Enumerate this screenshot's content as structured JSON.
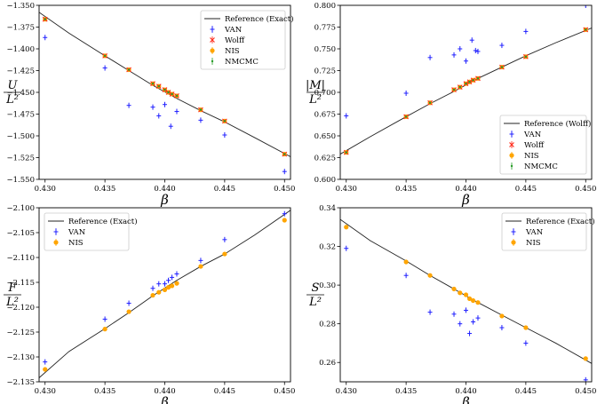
{
  "figure": {
    "colors": {
      "reference": "#222222",
      "VAN": "#1f1fff",
      "Wolff": "#ff2a1a",
      "NIS": "#ffa500",
      "NMCMC": "#2a9d2a"
    }
  },
  "chart_data": [
    {
      "id": "energy",
      "type": "scatter",
      "ylabel_num": "U",
      "ylabel_den": "L²",
      "xlabel": "β",
      "xlim": [
        0.4295,
        0.4505
      ],
      "ylim": [
        -1.55,
        -1.35
      ],
      "xticks": [
        0.43,
        0.435,
        0.44,
        0.445,
        0.45
      ],
      "xtick_labels": [
        "0.430",
        "0.435",
        "0.440",
        "0.445",
        "0.450"
      ],
      "yticks": [
        -1.55,
        -1.525,
        -1.5,
        -1.475,
        -1.45,
        -1.425,
        -1.4,
        -1.375,
        -1.35
      ],
      "ytick_labels": [
        "−1.550",
        "−1.525",
        "−1.500",
        "−1.475",
        "−1.450",
        "−1.425",
        "−1.400",
        "−1.375",
        "−1.350"
      ],
      "legend": "top-right",
      "reference": {
        "name": "Reference (Exact)",
        "x": [
          0.4295,
          0.432,
          0.435,
          0.437,
          0.439,
          0.441,
          0.443,
          0.445,
          0.4475,
          0.4505
        ],
        "y": [
          -1.358,
          -1.382,
          -1.408,
          -1.425,
          -1.442,
          -1.457,
          -1.471,
          -1.484,
          -1.502,
          -1.524
        ]
      },
      "series": [
        {
          "name": "VAN",
          "marker": "plus",
          "x": [
            0.43,
            0.435,
            0.437,
            0.439,
            0.4395,
            0.44,
            0.4405,
            0.441,
            0.443,
            0.445,
            0.45
          ],
          "y": [
            -1.387,
            -1.422,
            -1.465,
            -1.467,
            -1.477,
            -1.464,
            -1.489,
            -1.472,
            -1.482,
            -1.499,
            -1.541
          ]
        },
        {
          "name": "Wolff",
          "marker": "x",
          "x": [
            0.43,
            0.435,
            0.437,
            0.439,
            0.4395,
            0.44,
            0.4403,
            0.4406,
            0.441,
            0.443,
            0.445,
            0.45
          ],
          "y": [
            -1.366,
            -1.408,
            -1.424,
            -1.44,
            -1.443,
            -1.447,
            -1.45,
            -1.452,
            -1.454,
            -1.47,
            -1.483,
            -1.521
          ]
        },
        {
          "name": "NIS",
          "marker": "dot",
          "x": [
            0.43,
            0.435,
            0.437,
            0.439,
            0.4395,
            0.44,
            0.4403,
            0.4406,
            0.441,
            0.443,
            0.445,
            0.45
          ],
          "y": [
            -1.366,
            -1.408,
            -1.424,
            -1.44,
            -1.443,
            -1.447,
            -1.45,
            -1.452,
            -1.454,
            -1.47,
            -1.483,
            -1.521
          ]
        },
        {
          "name": "NMCMC",
          "marker": "dot-small",
          "x": [
            0.43,
            0.435,
            0.437,
            0.439,
            0.4395,
            0.44,
            0.4403,
            0.4406,
            0.441,
            0.443,
            0.445,
            0.45
          ],
          "y": [
            -1.366,
            -1.408,
            -1.424,
            -1.44,
            -1.443,
            -1.447,
            -1.45,
            -1.452,
            -1.454,
            -1.47,
            -1.483,
            -1.521
          ]
        }
      ]
    },
    {
      "id": "magnetization",
      "type": "scatter",
      "ylabel_num": "|M|",
      "ylabel_den": "L²",
      "xlabel": "β",
      "xlim": [
        0.4295,
        0.4505
      ],
      "ylim": [
        0.6,
        0.8
      ],
      "xticks": [
        0.43,
        0.435,
        0.44,
        0.445,
        0.45
      ],
      "xtick_labels": [
        "0.430",
        "0.435",
        "0.440",
        "0.445",
        "0.450"
      ],
      "yticks": [
        0.6,
        0.625,
        0.65,
        0.675,
        0.7,
        0.725,
        0.75,
        0.775,
        0.8
      ],
      "ytick_labels": [
        "0.600",
        "0.625",
        "0.650",
        "0.675",
        "0.700",
        "0.725",
        "0.750",
        "0.775",
        "0.800"
      ],
      "legend": "bottom-right",
      "reference": {
        "name": "Reference (Wolff)",
        "x": [
          0.4295,
          0.432,
          0.435,
          0.437,
          0.439,
          0.441,
          0.443,
          0.445,
          0.4475,
          0.4505
        ],
        "y": [
          0.629,
          0.649,
          0.672,
          0.687,
          0.701,
          0.716,
          0.729,
          0.742,
          0.757,
          0.774
        ]
      },
      "series": [
        {
          "name": "VAN",
          "marker": "plus",
          "x": [
            0.43,
            0.435,
            0.437,
            0.439,
            0.4395,
            0.44,
            0.4405,
            0.4408,
            0.441,
            0.443,
            0.445,
            0.45
          ],
          "y": [
            0.673,
            0.699,
            0.74,
            0.743,
            0.75,
            0.736,
            0.76,
            0.748,
            0.747,
            0.754,
            0.77,
            0.8
          ]
        },
        {
          "name": "Wolff",
          "marker": "x",
          "x": [
            0.43,
            0.435,
            0.437,
            0.439,
            0.4395,
            0.44,
            0.4403,
            0.4406,
            0.441,
            0.443,
            0.445,
            0.45
          ],
          "y": [
            0.631,
            0.672,
            0.688,
            0.703,
            0.706,
            0.71,
            0.712,
            0.714,
            0.716,
            0.729,
            0.741,
            0.772
          ]
        },
        {
          "name": "NIS",
          "marker": "dot",
          "x": [
            0.43,
            0.435,
            0.437,
            0.439,
            0.4395,
            0.44,
            0.4403,
            0.4406,
            0.441,
            0.443,
            0.445,
            0.45
          ],
          "y": [
            0.631,
            0.672,
            0.688,
            0.703,
            0.706,
            0.71,
            0.712,
            0.714,
            0.716,
            0.729,
            0.741,
            0.772
          ]
        },
        {
          "name": "NMCMC",
          "marker": "dot-small",
          "x": [
            0.43,
            0.435,
            0.437,
            0.439,
            0.4395,
            0.44,
            0.4403,
            0.4406,
            0.441,
            0.443,
            0.445,
            0.45
          ],
          "y": [
            0.631,
            0.672,
            0.688,
            0.703,
            0.706,
            0.71,
            0.712,
            0.714,
            0.716,
            0.729,
            0.741,
            0.772
          ]
        }
      ]
    },
    {
      "id": "free-energy",
      "type": "scatter",
      "ylabel_num": "F",
      "ylabel_den": "L²",
      "xlabel": "β",
      "xlim": [
        0.4295,
        0.4505
      ],
      "ylim": [
        -2.135,
        -2.1
      ],
      "xticks": [
        0.43,
        0.435,
        0.44,
        0.445,
        0.45
      ],
      "xtick_labels": [
        "0.430",
        "0.435",
        "0.440",
        "0.445",
        "0.450"
      ],
      "yticks": [
        -2.135,
        -2.13,
        -2.125,
        -2.12,
        -2.115,
        -2.11,
        -2.105,
        -2.1
      ],
      "ytick_labels": [
        "−2.135",
        "−2.130",
        "−2.125",
        "−2.120",
        "−2.115",
        "−2.110",
        "−2.105",
        "−2.100"
      ],
      "legend": "top-left",
      "reference": {
        "name": "Reference (Exact)",
        "x": [
          0.4295,
          0.432,
          0.435,
          0.437,
          0.439,
          0.441,
          0.443,
          0.445,
          0.4475,
          0.4505
        ],
        "y": [
          -2.1342,
          -2.1289,
          -2.1243,
          -2.1211,
          -2.1177,
          -2.1146,
          -2.1118,
          -2.1093,
          -2.1055,
          -2.1005
        ]
      },
      "series": [
        {
          "name": "VAN",
          "marker": "plus",
          "x": [
            0.43,
            0.435,
            0.437,
            0.439,
            0.4395,
            0.44,
            0.4403,
            0.4406,
            0.441,
            0.443,
            0.445,
            0.45
          ],
          "y": [
            -2.131,
            -2.1224,
            -2.1192,
            -2.1162,
            -2.1153,
            -2.1153,
            -2.1146,
            -2.114,
            -2.1133,
            -2.1106,
            -2.1064,
            -2.1012
          ]
        },
        {
          "name": "NIS",
          "marker": "dot",
          "x": [
            0.43,
            0.435,
            0.437,
            0.439,
            0.4395,
            0.44,
            0.4403,
            0.4406,
            0.441,
            0.443,
            0.445,
            0.45
          ],
          "y": [
            -2.1325,
            -2.1244,
            -2.1209,
            -2.1176,
            -2.117,
            -2.1165,
            -2.116,
            -2.1157,
            -2.1152,
            -2.1118,
            -2.1093,
            -2.1025
          ]
        }
      ]
    },
    {
      "id": "entropy",
      "type": "scatter",
      "ylabel_num": "S",
      "ylabel_den": "L²",
      "xlabel": "β",
      "xlim": [
        0.4295,
        0.4505
      ],
      "ylim": [
        0.25,
        0.34
      ],
      "xticks": [
        0.43,
        0.435,
        0.44,
        0.445,
        0.45
      ],
      "xtick_labels": [
        "0.430",
        "0.435",
        "0.440",
        "0.445",
        "0.450"
      ],
      "yticks": [
        0.26,
        0.28,
        0.3,
        0.32,
        0.34
      ],
      "ytick_labels": [
        "0.26",
        "0.28",
        "0.30",
        "0.32",
        "0.34"
      ],
      "legend": "top-right",
      "reference": {
        "name": "Reference (Exact)",
        "x": [
          0.4295,
          0.432,
          0.435,
          0.437,
          0.439,
          0.441,
          0.443,
          0.445,
          0.4475,
          0.4505
        ],
        "y": [
          0.334,
          0.323,
          0.3125,
          0.305,
          0.298,
          0.291,
          0.2845,
          0.278,
          0.27,
          0.2595
        ]
      },
      "series": [
        {
          "name": "VAN",
          "marker": "plus",
          "x": [
            0.43,
            0.435,
            0.437,
            0.439,
            0.4395,
            0.44,
            0.4403,
            0.4406,
            0.441,
            0.443,
            0.445,
            0.45
          ],
          "y": [
            0.319,
            0.305,
            0.286,
            0.285,
            0.28,
            0.287,
            0.275,
            0.281,
            0.283,
            0.278,
            0.27,
            0.251
          ]
        },
        {
          "name": "NIS",
          "marker": "dot",
          "x": [
            0.43,
            0.435,
            0.437,
            0.439,
            0.4395,
            0.44,
            0.4403,
            0.4406,
            0.441,
            0.443,
            0.445,
            0.45
          ],
          "y": [
            0.33,
            0.312,
            0.305,
            0.298,
            0.296,
            0.295,
            0.293,
            0.292,
            0.291,
            0.284,
            0.278,
            0.262
          ]
        }
      ]
    }
  ]
}
